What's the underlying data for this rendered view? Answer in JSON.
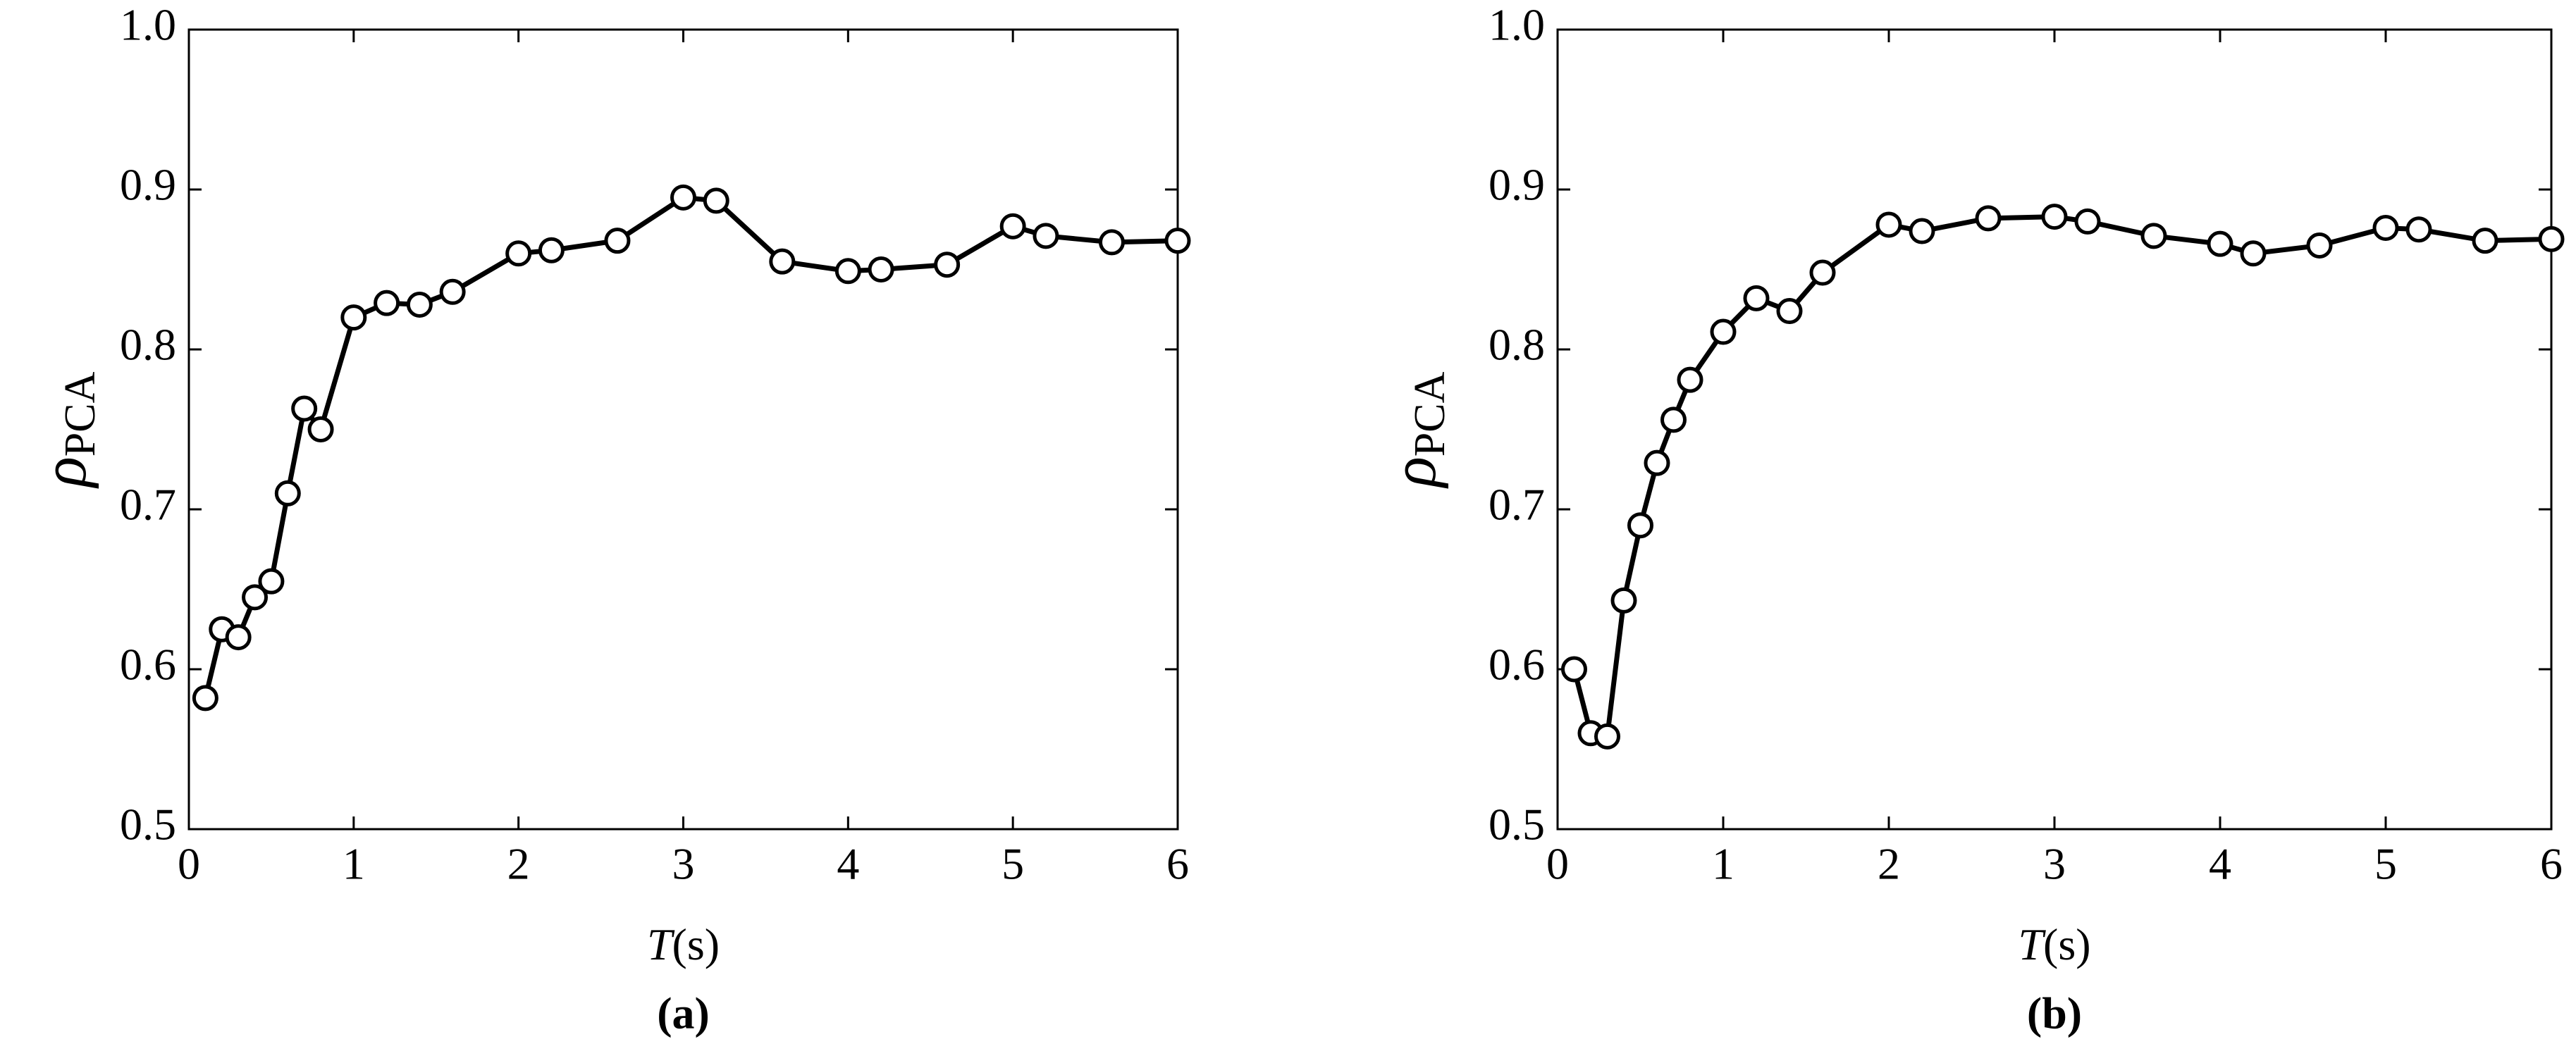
{
  "chart_data": [
    {
      "type": "line",
      "panel_label": "(a)",
      "xlabel": {
        "symbol": "T",
        "unit": "(s)"
      },
      "ylabel": {
        "symbol": "ρ",
        "subscript": "PCA"
      },
      "x": [
        0.1,
        0.2,
        0.3,
        0.4,
        0.5,
        0.6,
        0.7,
        0.8,
        1.0,
        1.2,
        1.4,
        1.6,
        2.0,
        2.2,
        2.6,
        3.0,
        3.2,
        3.6,
        4.0,
        4.2,
        4.6,
        5.0,
        5.2,
        5.6,
        6.0
      ],
      "series": [
        {
          "color": "#000000",
          "values": [
            0.582,
            0.625,
            0.62,
            0.645,
            0.655,
            0.71,
            0.763,
            0.75,
            0.82,
            0.829,
            0.828,
            0.836,
            0.86,
            0.862,
            0.868,
            0.895,
            0.893,
            0.855,
            0.849,
            0.85,
            0.853,
            0.877,
            0.871,
            0.867,
            0.868
          ]
        }
      ],
      "xlim": [
        0,
        6
      ],
      "xticks": [
        0,
        1,
        2,
        3,
        4,
        5,
        6
      ],
      "ylim": [
        0.5,
        1.0
      ],
      "yticks": [
        0.5,
        0.6,
        0.7,
        0.8,
        0.9,
        {
          "value": 1.0,
          "label": "1.0"
        }
      ]
    },
    {
      "type": "line",
      "panel_label": "(b)",
      "xlabel": {
        "symbol": "T",
        "unit": "(s)"
      },
      "ylabel": {
        "symbol": "ρ",
        "subscript": "PCA"
      },
      "x": [
        0.1,
        0.2,
        0.3,
        0.4,
        0.5,
        0.6,
        0.7,
        0.8,
        1.0,
        1.2,
        1.4,
        1.6,
        2.0,
        2.2,
        2.6,
        3.0,
        3.2,
        3.6,
        4.0,
        4.2,
        4.6,
        5.0,
        5.2,
        5.6,
        6.0
      ],
      "series": [
        {
          "color": "#000000",
          "values": [
            0.6,
            0.56,
            0.558,
            0.643,
            0.69,
            0.729,
            0.756,
            0.781,
            0.811,
            0.832,
            0.824,
            0.848,
            0.878,
            0.874,
            0.882,
            0.883,
            0.88,
            0.871,
            0.866,
            0.86,
            0.865,
            0.876,
            0.875,
            0.868,
            0.869
          ]
        }
      ],
      "xlim": [
        0,
        6
      ],
      "xticks": [
        0,
        1,
        2,
        3,
        4,
        5,
        6
      ],
      "ylim": [
        0.5,
        1.0
      ],
      "yticks": [
        0.5,
        0.6,
        0.7,
        0.8,
        0.9,
        {
          "value": 1.0,
          "label": "1.0"
        }
      ]
    }
  ]
}
